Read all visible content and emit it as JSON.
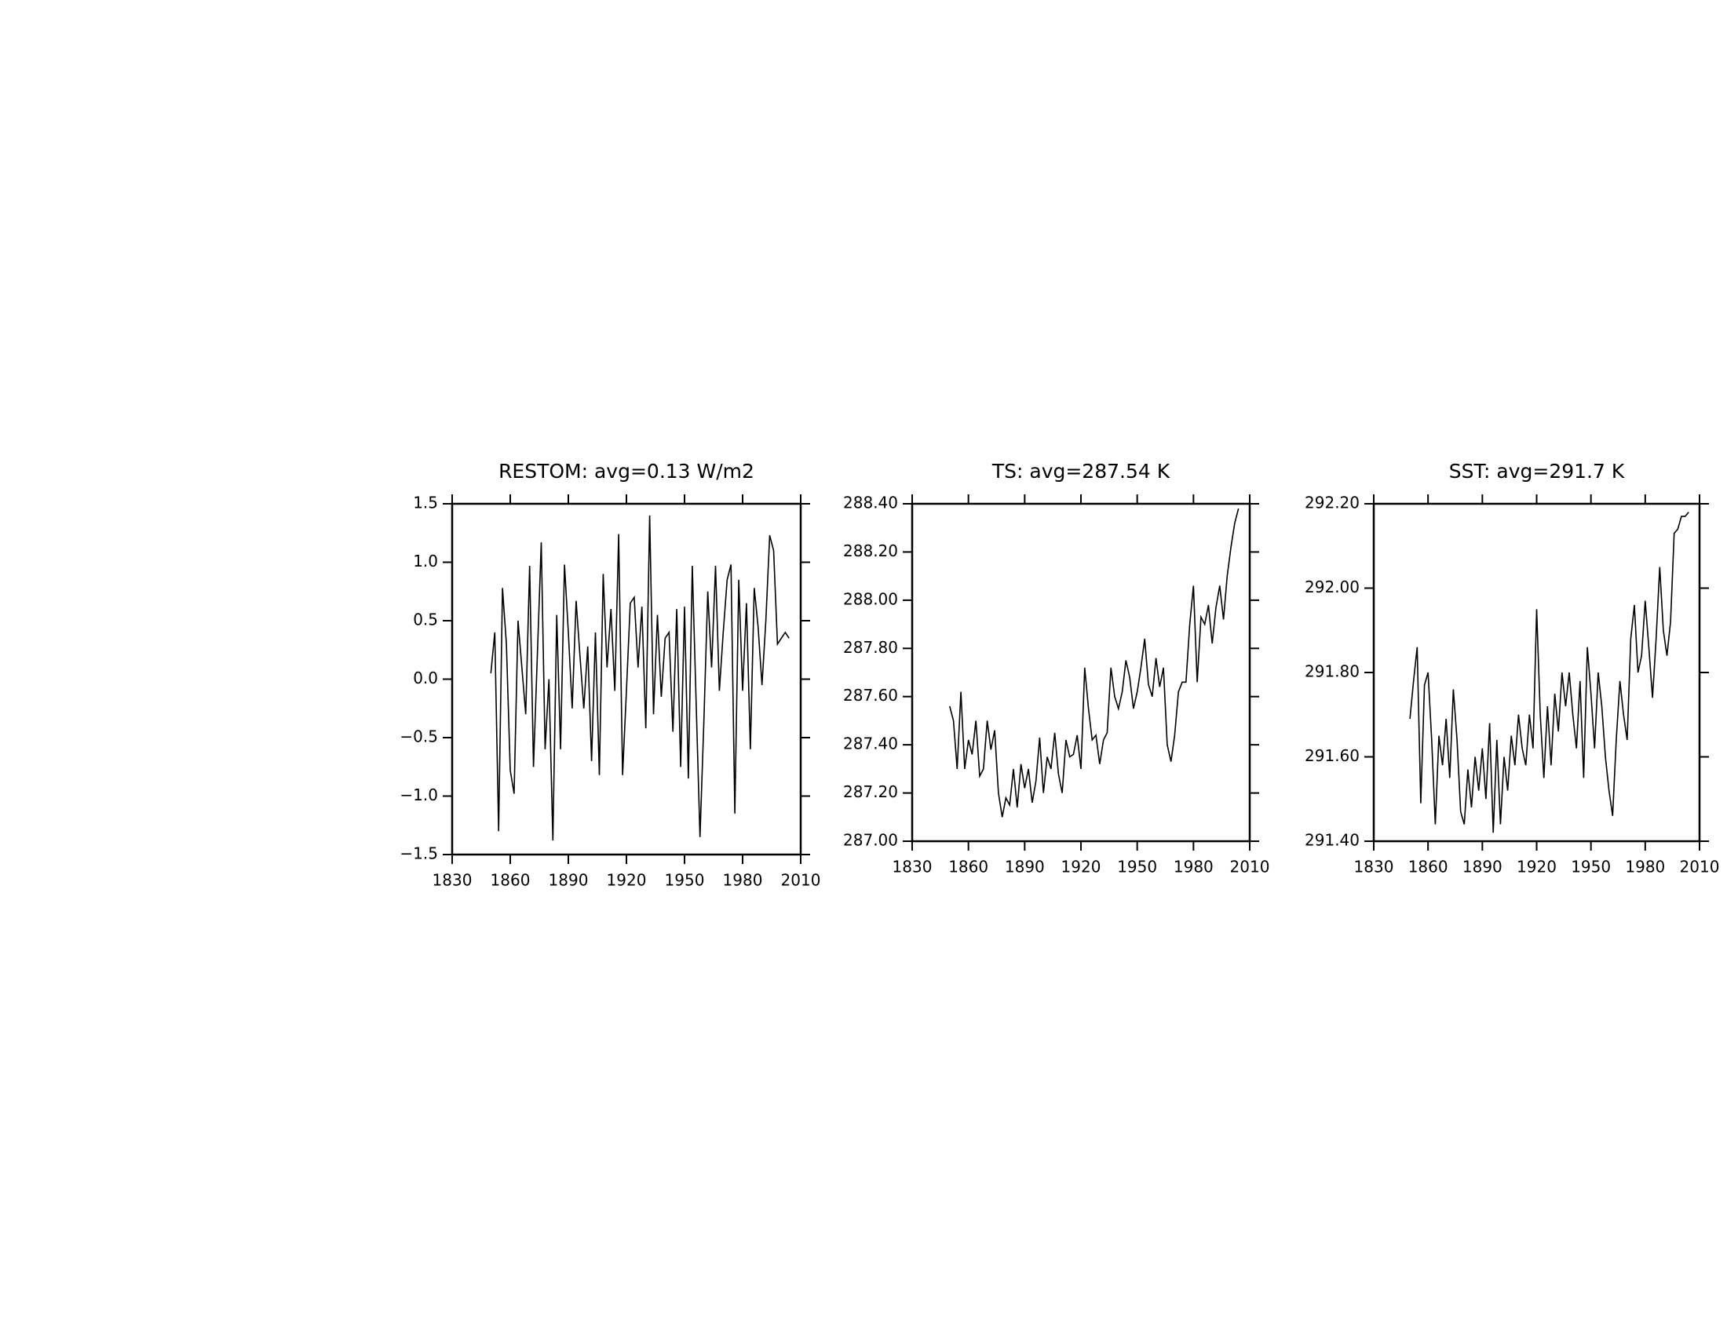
{
  "chart_data": [
    {
      "type": "line",
      "title": "RESTOM: avg=0.13 W/m2",
      "color": "#000000",
      "x": [
        1850,
        1852,
        1854,
        1856,
        1858,
        1860,
        1862,
        1864,
        1866,
        1868,
        1870,
        1872,
        1874,
        1876,
        1878,
        1880,
        1882,
        1884,
        1886,
        1888,
        1890,
        1892,
        1894,
        1896,
        1898,
        1900,
        1902,
        1904,
        1906,
        1908,
        1910,
        1912,
        1914,
        1916,
        1918,
        1920,
        1922,
        1924,
        1926,
        1928,
        1930,
        1932,
        1934,
        1936,
        1938,
        1940,
        1942,
        1944,
        1946,
        1948,
        1950,
        1952,
        1954,
        1956,
        1958,
        1960,
        1962,
        1964,
        1966,
        1968,
        1970,
        1972,
        1974,
        1976,
        1978,
        1980,
        1982,
        1984,
        1986,
        1988,
        1990,
        1992,
        1994,
        1996,
        1998,
        2000,
        2002,
        2004
      ],
      "values": [
        0.05,
        0.4,
        -1.3,
        0.78,
        0.3,
        -0.78,
        -0.98,
        0.5,
        0.1,
        -0.3,
        0.97,
        -0.75,
        0.2,
        1.17,
        -0.6,
        0.0,
        -1.38,
        0.55,
        -0.6,
        0.98,
        0.4,
        -0.25,
        0.67,
        0.2,
        -0.25,
        0.28,
        -0.7,
        0.4,
        -0.82,
        0.9,
        0.1,
        0.6,
        -0.1,
        1.24,
        -0.82,
        -0.1,
        0.65,
        0.7,
        0.1,
        0.62,
        -0.42,
        1.4,
        -0.3,
        0.55,
        -0.15,
        0.35,
        0.4,
        -0.45,
        0.6,
        -0.75,
        0.62,
        -0.85,
        0.97,
        -0.2,
        -1.35,
        -0.35,
        0.75,
        0.1,
        0.97,
        -0.1,
        0.4,
        0.85,
        0.98,
        -1.15,
        0.85,
        -0.1,
        0.65,
        -0.6,
        0.78,
        0.45,
        -0.05,
        0.5,
        1.23,
        1.1,
        0.3,
        0.35,
        0.4,
        0.35
      ],
      "xlim": [
        1830,
        2010
      ],
      "xticks": [
        1830,
        1860,
        1890,
        1920,
        1950,
        1980,
        2010
      ],
      "ylim": [
        -1.5,
        1.5
      ],
      "yticks": [
        {
          "value": -1.5,
          "label": "−1.5"
        },
        {
          "value": -1.0,
          "label": "−1.0"
        },
        {
          "value": -0.5,
          "label": "−0.5"
        },
        {
          "value": 0.0,
          "label": "0.0"
        },
        0.5,
        {
          "value": 1.0,
          "label": "1.0"
        },
        1.5
      ]
    },
    {
      "type": "line",
      "title": "TS: avg=287.54 K",
      "color": "#000000",
      "x": [
        1850,
        1852,
        1854,
        1856,
        1858,
        1860,
        1862,
        1864,
        1866,
        1868,
        1870,
        1872,
        1874,
        1876,
        1878,
        1880,
        1882,
        1884,
        1886,
        1888,
        1890,
        1892,
        1894,
        1896,
        1898,
        1900,
        1902,
        1904,
        1906,
        1908,
        1910,
        1912,
        1914,
        1916,
        1918,
        1920,
        1922,
        1924,
        1926,
        1928,
        1930,
        1932,
        1934,
        1936,
        1938,
        1940,
        1942,
        1944,
        1946,
        1948,
        1950,
        1952,
        1954,
        1956,
        1958,
        1960,
        1962,
        1964,
        1966,
        1968,
        1970,
        1972,
        1974,
        1976,
        1978,
        1980,
        1982,
        1984,
        1986,
        1988,
        1990,
        1992,
        1994,
        1996,
        1998,
        2000,
        2002,
        2004
      ],
      "values": [
        287.56,
        287.5,
        287.3,
        287.62,
        287.3,
        287.42,
        287.36,
        287.5,
        287.27,
        287.3,
        287.5,
        287.38,
        287.46,
        287.2,
        287.1,
        287.18,
        287.15,
        287.3,
        287.14,
        287.32,
        287.22,
        287.3,
        287.16,
        287.25,
        287.43,
        287.2,
        287.35,
        287.3,
        287.45,
        287.28,
        287.2,
        287.42,
        287.35,
        287.36,
        287.44,
        287.3,
        287.72,
        287.55,
        287.42,
        287.44,
        287.32,
        287.42,
        287.45,
        287.72,
        287.6,
        287.55,
        287.62,
        287.75,
        287.68,
        287.55,
        287.62,
        287.72,
        287.84,
        287.65,
        287.6,
        287.76,
        287.64,
        287.72,
        287.4,
        287.33,
        287.44,
        287.62,
        287.66,
        287.66,
        287.9,
        288.06,
        287.66,
        287.93,
        287.9,
        287.98,
        287.82,
        287.97,
        288.06,
        287.92,
        288.1,
        288.22,
        288.32,
        288.38
      ],
      "xlim": [
        1830,
        2010
      ],
      "xticks": [
        1830,
        1860,
        1890,
        1920,
        1950,
        1980,
        2010
      ],
      "ylim": [
        287.0,
        288.4
      ],
      "yticks": [
        {
          "value": 287.0,
          "label": "287.00"
        },
        {
          "value": 287.2,
          "label": "287.20"
        },
        {
          "value": 287.4,
          "label": "287.40"
        },
        {
          "value": 287.6,
          "label": "287.60"
        },
        {
          "value": 287.8,
          "label": "287.80"
        },
        {
          "value": 288.0,
          "label": "288.00"
        },
        {
          "value": 288.2,
          "label": "288.20"
        },
        {
          "value": 288.4,
          "label": "288.40"
        }
      ]
    },
    {
      "type": "line",
      "title": "SST: avg=291.7 K",
      "color": "#000000",
      "x": [
        1850,
        1852,
        1854,
        1856,
        1858,
        1860,
        1862,
        1864,
        1866,
        1868,
        1870,
        1872,
        1874,
        1876,
        1878,
        1880,
        1882,
        1884,
        1886,
        1888,
        1890,
        1892,
        1894,
        1896,
        1898,
        1900,
        1902,
        1904,
        1906,
        1908,
        1910,
        1912,
        1914,
        1916,
        1918,
        1920,
        1922,
        1924,
        1926,
        1928,
        1930,
        1932,
        1934,
        1936,
        1938,
        1940,
        1942,
        1944,
        1946,
        1948,
        1950,
        1952,
        1954,
        1956,
        1958,
        1960,
        1962,
        1964,
        1966,
        1968,
        1970,
        1972,
        1974,
        1976,
        1978,
        1980,
        1982,
        1984,
        1986,
        1988,
        1990,
        1992,
        1994,
        1996,
        1998,
        2000,
        2002,
        2004
      ],
      "values": [
        291.69,
        291.78,
        291.86,
        291.49,
        291.77,
        291.8,
        291.64,
        291.44,
        291.65,
        291.58,
        291.69,
        291.55,
        291.76,
        291.64,
        291.47,
        291.44,
        291.57,
        291.48,
        291.6,
        291.52,
        291.62,
        291.5,
        291.68,
        291.42,
        291.64,
        291.44,
        291.6,
        291.52,
        291.65,
        291.58,
        291.7,
        291.62,
        291.58,
        291.7,
        291.62,
        291.95,
        291.7,
        291.55,
        291.72,
        291.58,
        291.75,
        291.66,
        291.8,
        291.72,
        291.8,
        291.7,
        291.62,
        291.78,
        291.55,
        291.86,
        291.75,
        291.62,
        291.8,
        291.72,
        291.6,
        291.52,
        291.46,
        291.64,
        291.78,
        291.7,
        291.64,
        291.88,
        291.96,
        291.8,
        291.84,
        291.97,
        291.86,
        291.74,
        291.88,
        292.05,
        291.9,
        291.84,
        291.92,
        292.13,
        292.14,
        292.17,
        292.17,
        292.18
      ],
      "xlim": [
        1830,
        2010
      ],
      "xticks": [
        1830,
        1860,
        1890,
        1920,
        1950,
        1980,
        2010
      ],
      "ylim": [
        291.4,
        292.2
      ],
      "yticks": [
        {
          "value": 291.4,
          "label": "291.40"
        },
        {
          "value": 291.6,
          "label": "291.60"
        },
        {
          "value": 291.8,
          "label": "291.80"
        },
        {
          "value": 292.0,
          "label": "292.00"
        },
        {
          "value": 292.2,
          "label": "292.20"
        }
      ]
    }
  ]
}
